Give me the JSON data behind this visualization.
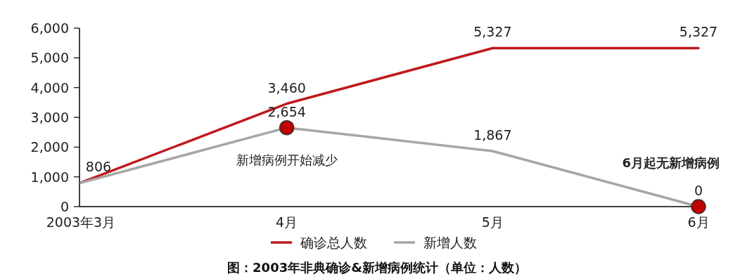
{
  "chart_data": {
    "type": "line",
    "categories": [
      "2003年3月",
      "4月",
      "5月",
      "6月"
    ],
    "series": [
      {
        "name": "确诊总人数",
        "color": "#c0191c",
        "values": [
          806,
          3460,
          5327,
          5327
        ],
        "value_labels": [
          "806",
          "3,460",
          "5,327",
          "5,327"
        ]
      },
      {
        "name": "新增人数",
        "color": "#a6a6a6",
        "values": [
          800,
          2654,
          1867,
          0
        ],
        "value_labels": [
          null,
          "2,654",
          "1,867",
          "0"
        ]
      },
      {
        "type": "scatter",
        "color": "#c00000",
        "x": [
          "4月",
          "6月"
        ],
        "values": [
          2654,
          0
        ],
        "marker": "circle"
      }
    ],
    "ylim": [
      0,
      6000
    ],
    "yticks": [
      0,
      {
        "value": 1000,
        "label": "1,000"
      },
      {
        "value": 2000,
        "label": "2,000"
      },
      {
        "value": 3000,
        "label": "3,000"
      },
      {
        "value": 4000,
        "label": "4,000"
      },
      {
        "value": 5000,
        "label": "5,000"
      },
      {
        "value": 6000,
        "label": "6,000"
      }
    ],
    "legend": "bottom",
    "annotations": [
      {
        "text": "新增病例开始减少",
        "x": "4月",
        "y": 2654
      },
      {
        "text": "6月起无新增病例",
        "x": "6月",
        "y": 0
      },
      "图：2003年非典确诊&新增病例统计（单位：人数）"
    ]
  }
}
